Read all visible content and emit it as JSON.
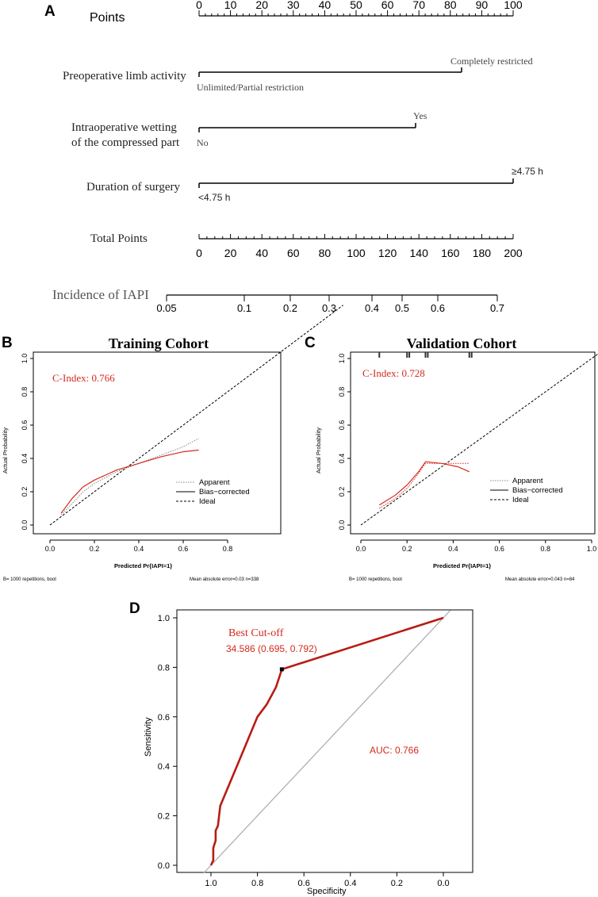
{
  "chart_data": [
    {
      "panel": "A",
      "type": "nomogram",
      "points_label": "Points",
      "points_ticks": [
        0,
        10,
        20,
        30,
        40,
        50,
        60,
        70,
        80,
        90,
        100
      ],
      "variables": [
        {
          "label": "Preoperative limb activity",
          "levels": [
            {
              "label": "Unlimited/Partial restriction",
              "points": 0
            },
            {
              "label": "Completely restricted",
              "points": 84
            }
          ]
        },
        {
          "label_lines": [
            "Intraoperative wetting",
            "of the compressed part"
          ],
          "levels": [
            {
              "label": "No",
              "points": 0
            },
            {
              "label": "Yes",
              "points": 69
            }
          ]
        },
        {
          "label": "Duration of surgery",
          "levels": [
            {
              "label": "<4.75 h",
              "points": 0
            },
            {
              "label": "≥4.75 h",
              "points": 100
            }
          ]
        }
      ],
      "total_points_label": "Total Points",
      "total_points_ticks": [
        0,
        20,
        40,
        60,
        80,
        100,
        120,
        140,
        160,
        180,
        200
      ],
      "incidence_label": "Incidence of IAPI",
      "incidence_ticks": [
        "0.05",
        "0.1",
        "0.2",
        "0.3",
        "0.4",
        "0.5",
        "0.6",
        "0.7"
      ]
    },
    {
      "panel": "B",
      "type": "line",
      "title": "Training Cohort",
      "xlabel": "Predicted Pr{IAPI=1}",
      "ylabel": "Actual Probability",
      "xlim": [
        0,
        0.8
      ],
      "ylim": [
        0,
        1
      ],
      "xticks": [
        "0.0",
        "0.2",
        "0.4",
        "0.6",
        "0.8"
      ],
      "yticks": [
        "0.0",
        "0.2",
        "0.4",
        "0.6",
        "0.8",
        "1.0"
      ],
      "annotation": "C-Index: 0.766",
      "legend": [
        "Apparent",
        "Bias−corrected",
        "Ideal"
      ],
      "footer_left": "B= 1000 repetitions, boot",
      "footer_right": "Mean absolute error=0.03 n=338",
      "series": [
        {
          "name": "Apparent",
          "x": [
            0.05,
            0.1,
            0.15,
            0.2,
            0.3,
            0.4,
            0.5,
            0.6,
            0.67
          ],
          "y": [
            0.06,
            0.13,
            0.2,
            0.25,
            0.32,
            0.37,
            0.42,
            0.47,
            0.52
          ]
        },
        {
          "name": "Bias-corrected",
          "x": [
            0.05,
            0.1,
            0.15,
            0.2,
            0.25,
            0.3,
            0.4,
            0.5,
            0.6,
            0.67
          ],
          "y": [
            0.07,
            0.16,
            0.23,
            0.27,
            0.3,
            0.33,
            0.37,
            0.41,
            0.44,
            0.45
          ]
        }
      ]
    },
    {
      "panel": "C",
      "type": "line",
      "title": "Validation Cohort",
      "xlabel": "Predicted Pr{IAPI=1}",
      "ylabel": "Actual Probability",
      "xlim": [
        0,
        1
      ],
      "ylim": [
        0,
        1
      ],
      "xticks": [
        "0.0",
        "0.2",
        "0.4",
        "0.6",
        "0.8",
        "1.0"
      ],
      "yticks": [
        "0.0",
        "0.2",
        "0.4",
        "0.6",
        "0.8",
        "1.0"
      ],
      "annotation": "C-Index: 0.728",
      "legend": [
        "Apparent",
        "Bias−corrected",
        "Ideal"
      ],
      "footer_left": "B= 1000 repetitions, boot",
      "footer_right": "Mean absolute error=0.043 n=84",
      "rug": [
        0.08,
        0.2,
        0.21,
        0.28,
        0.29,
        0.47,
        0.48
      ],
      "series": [
        {
          "name": "Apparent",
          "x": [
            0.08,
            0.15,
            0.2,
            0.25,
            0.28,
            0.35,
            0.47
          ],
          "y": [
            0.1,
            0.16,
            0.22,
            0.31,
            0.37,
            0.37,
            0.37
          ]
        },
        {
          "name": "Bias-corrected",
          "x": [
            0.08,
            0.15,
            0.2,
            0.25,
            0.28,
            0.35,
            0.42,
            0.47
          ],
          "y": [
            0.12,
            0.18,
            0.24,
            0.32,
            0.38,
            0.37,
            0.35,
            0.32
          ]
        }
      ]
    },
    {
      "panel": "D",
      "type": "line",
      "xlabel": "Specificity",
      "ylabel": "Sensitivity",
      "xlim": [
        1.0,
        0.0
      ],
      "ylim": [
        0,
        1
      ],
      "xticks": [
        "1.0",
        "0.8",
        "0.6",
        "0.4",
        "0.2",
        "0.0"
      ],
      "yticks": [
        "0.0",
        "0.2",
        "0.4",
        "0.6",
        "0.8",
        "1.0"
      ],
      "best_cutoff_label": "Best Cut-off",
      "best_cutoff_value": "34.586 (0.695, 0.792)",
      "auc_label": "AUC: 0.766",
      "best_cutoff_point": {
        "spec": 0.695,
        "sens": 0.792
      },
      "series": [
        {
          "name": "ROC",
          "spec": [
            1.0,
            0.99,
            0.99,
            0.98,
            0.98,
            0.97,
            0.96,
            0.88,
            0.8,
            0.76,
            0.72,
            0.695,
            0.0
          ],
          "sens": [
            0.0,
            0.02,
            0.07,
            0.1,
            0.14,
            0.16,
            0.24,
            0.42,
            0.6,
            0.65,
            0.72,
            0.792,
            1.0
          ]
        }
      ]
    }
  ],
  "panel_labels": {
    "a": "A",
    "b": "B",
    "c": "C",
    "d": "D"
  }
}
